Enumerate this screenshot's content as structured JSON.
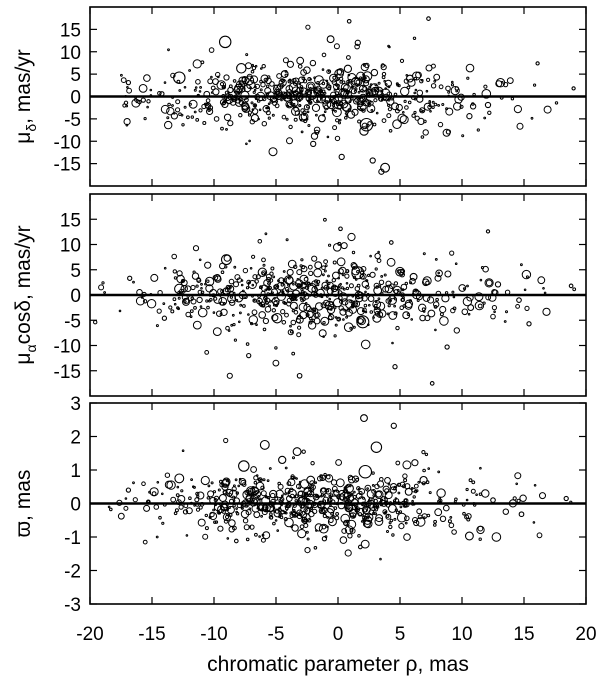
{
  "chart_data": [
    {
      "type": "scatter",
      "ylabel": "μδ, mas/yr",
      "ylabel_parts": {
        "main": "μ",
        "sub": "δ",
        "rest": ", mas/yr"
      },
      "ylim": [
        -20,
        20
      ],
      "yticks": [
        -15,
        -10,
        -5,
        0,
        5,
        10,
        15
      ],
      "ytick_labels": [
        "-15",
        "-10",
        "-5",
        "0",
        "5",
        "10",
        "15"
      ],
      "zero_line": true,
      "points": [
        {
          "x": -12.8,
          "y": 4.2,
          "s": 2.2
        },
        {
          "x": -9.1,
          "y": 12.2,
          "s": 2.2
        },
        {
          "x": -7.8,
          "y": 6.3,
          "s": 1.8
        },
        {
          "x": -0.6,
          "y": 12.8,
          "s": 1.3
        },
        {
          "x": 2.3,
          "y": -6.3,
          "s": 2.4
        },
        {
          "x": 2.1,
          "y": -7.7,
          "s": 1.6
        },
        {
          "x": 3.8,
          "y": -15.9,
          "s": 1.7
        },
        {
          "x": 3.5,
          "y": -16.8,
          "s": 1.0
        },
        {
          "x": 1.6,
          "y": 12.0,
          "s": 1.0
        },
        {
          "x": 0.9,
          "y": 16.8,
          "s": 0.7
        },
        {
          "x": 7.3,
          "y": 17.4,
          "s": 0.7
        },
        {
          "x": -6.7,
          "y": -4.8,
          "s": 1.4
        },
        {
          "x": -2.0,
          "y": -10.6,
          "s": 1.0
        },
        {
          "x": 0.3,
          "y": -13.5,
          "s": 1.0
        },
        {
          "x": 2.8,
          "y": -14.3,
          "s": 1.0
        },
        {
          "x": -3.6,
          "y": 2.1,
          "s": 1.6
        },
        {
          "x": -2.1,
          "y": 0.4,
          "s": 1.8
        },
        {
          "x": -0.9,
          "y": -1.8,
          "s": 1.5
        },
        {
          "x": 1.4,
          "y": 3.1,
          "s": 1.7
        },
        {
          "x": 4.6,
          "y": -2.2,
          "s": 1.3
        },
        {
          "x": 5.8,
          "y": 4.0,
          "s": 1.3
        },
        {
          "x": -5.2,
          "y": -0.6,
          "s": 1.2
        },
        {
          "x": 10.6,
          "y": -4.4,
          "s": 1.0
        },
        {
          "x": 12.1,
          "y": -1.9,
          "s": 1.0
        },
        {
          "x": -16.9,
          "y": 3.1,
          "s": 0.8
        },
        {
          "x": -15.7,
          "y": -0.8,
          "s": 0.8
        },
        {
          "x": 16.1,
          "y": 7.4,
          "s": 0.6
        },
        {
          "x": 19.0,
          "y": 1.8,
          "s": 0.6
        },
        {
          "x": -14.2,
          "y": 0.6,
          "s": 0.8
        },
        {
          "x": 8.9,
          "y": -7.9,
          "s": 0.8
        },
        {
          "x": -8.0,
          "y": 1.8,
          "s": 1.6
        },
        {
          "x": -4.3,
          "y": 5.0,
          "s": 1.3
        },
        {
          "x": 0.8,
          "y": 6.2,
          "s": 1.4
        },
        {
          "x": 3.3,
          "y": 1.2,
          "s": 1.5
        },
        {
          "x": -1.3,
          "y": -4.9,
          "s": 1.3
        },
        {
          "x": 6.6,
          "y": -0.6,
          "s": 1.2
        }
      ],
      "scatter_seed": 11,
      "scatter_count": 620,
      "scatter_spread": [
        6.5,
        3.2
      ]
    },
    {
      "type": "scatter",
      "ylabel": "μαcosδ, mas/yr",
      "ylabel_parts": {
        "main": "μ",
        "sub": "α",
        "rest": "cosδ, mas/yr"
      },
      "ylim": [
        -20,
        20
      ],
      "yticks": [
        -15,
        -10,
        -5,
        0,
        5,
        10,
        15
      ],
      "ytick_labels": [
        "-15",
        "-10",
        "-5",
        "0",
        "5",
        "10",
        "15"
      ],
      "zero_line": true,
      "points": [
        {
          "x": -12.8,
          "y": 1.2,
          "s": 1.8
        },
        {
          "x": -9.0,
          "y": 7.0,
          "s": 1.9
        },
        {
          "x": 1.6,
          "y": 4.4,
          "s": 2.3
        },
        {
          "x": 2.0,
          "y": -5.3,
          "s": 2.3
        },
        {
          "x": -4.9,
          "y": -4.6,
          "s": 1.8
        },
        {
          "x": -6.1,
          "y": 4.5,
          "s": 1.6
        },
        {
          "x": -3.1,
          "y": -16.0,
          "s": 0.9
        },
        {
          "x": 7.6,
          "y": -17.5,
          "s": 0.7
        },
        {
          "x": 4.3,
          "y": 10.4,
          "s": 0.7
        },
        {
          "x": 0.2,
          "y": 13.1,
          "s": 0.7
        },
        {
          "x": 12.1,
          "y": 12.6,
          "s": 0.6
        },
        {
          "x": 8.8,
          "y": -10.3,
          "s": 0.8
        },
        {
          "x": -7.2,
          "y": -12.0,
          "s": 0.8
        },
        {
          "x": 4.6,
          "y": -14.2,
          "s": 0.8
        },
        {
          "x": -2.1,
          "y": 1.4,
          "s": 1.7
        },
        {
          "x": -0.7,
          "y": -2.1,
          "s": 1.6
        },
        {
          "x": 3.2,
          "y": 0.9,
          "s": 1.5
        },
        {
          "x": 6.1,
          "y": 3.6,
          "s": 1.3
        },
        {
          "x": -3.9,
          "y": 2.9,
          "s": 1.4
        },
        {
          "x": 10.7,
          "y": -2.5,
          "s": 1.1
        },
        {
          "x": 14.6,
          "y": -1.0,
          "s": 0.9
        },
        {
          "x": 18.8,
          "y": 1.8,
          "s": 0.7
        },
        {
          "x": -16.8,
          "y": 3.3,
          "s": 0.8
        },
        {
          "x": -14.0,
          "y": -4.6,
          "s": 0.8
        },
        {
          "x": 12.9,
          "y": 2.1,
          "s": 1.0
        },
        {
          "x": -8.0,
          "y": -0.6,
          "s": 1.5
        },
        {
          "x": 5.5,
          "y": -4.0,
          "s": 1.3
        },
        {
          "x": -1.6,
          "y": 5.9,
          "s": 1.3
        },
        {
          "x": 0.4,
          "y": -0.4,
          "s": 1.6
        },
        {
          "x": 15.4,
          "y": -5.7,
          "s": 0.8
        }
      ],
      "scatter_seed": 29,
      "scatter_count": 620,
      "scatter_spread": [
        6.5,
        3.3
      ]
    },
    {
      "type": "scatter",
      "xlabel": "chromatic parameter ρ, mas",
      "ylabel": "ϖ, mas",
      "ylabel_parts": {
        "main": "ϖ",
        "sub": "",
        "rest": ", mas"
      },
      "xlim": [
        -20,
        20
      ],
      "xticks": [
        -20,
        -15,
        -10,
        -5,
        0,
        5,
        10,
        15,
        20
      ],
      "xtick_labels": [
        "-20",
        "-15",
        "-10",
        "-5",
        "0",
        "5",
        "10",
        "15",
        "20"
      ],
      "ylim": [
        -3,
        3
      ],
      "yticks": [
        -3,
        -2,
        -1,
        0,
        1,
        2,
        3
      ],
      "ytick_labels": [
        "-3",
        "-2",
        "-1",
        "0",
        "1",
        "2",
        "3"
      ],
      "zero_line": true,
      "points": [
        {
          "x": -12.8,
          "y": 0.75,
          "s": 1.7
        },
        {
          "x": -7.6,
          "y": 1.12,
          "s": 2.0
        },
        {
          "x": -5.9,
          "y": 1.75,
          "s": 1.7
        },
        {
          "x": -4.5,
          "y": 1.3,
          "s": 1.4
        },
        {
          "x": -3.3,
          "y": 1.55,
          "s": 1.5
        },
        {
          "x": 2.2,
          "y": 0.95,
          "s": 2.4
        },
        {
          "x": 3.1,
          "y": 1.68,
          "s": 2.0
        },
        {
          "x": 2.1,
          "y": 2.55,
          "s": 1.3
        },
        {
          "x": 4.5,
          "y": 2.32,
          "s": 1.0
        },
        {
          "x": 10.6,
          "y": -0.97,
          "s": 1.5
        },
        {
          "x": -8.2,
          "y": -1.12,
          "s": 0.7
        },
        {
          "x": -1.1,
          "y": -1.05,
          "s": 0.8
        },
        {
          "x": 1.8,
          "y": -1.3,
          "s": 0.7
        },
        {
          "x": -9.0,
          "y": 0.65,
          "s": 1.4
        },
        {
          "x": -3.7,
          "y": 0.3,
          "s": 1.6
        },
        {
          "x": -0.3,
          "y": 0.1,
          "s": 1.6
        },
        {
          "x": 0.9,
          "y": 0.45,
          "s": 1.6
        },
        {
          "x": 5.7,
          "y": 0.35,
          "s": 1.3
        },
        {
          "x": 6.9,
          "y": 0.7,
          "s": 1.4
        },
        {
          "x": 14.8,
          "y": -0.32,
          "s": 0.9
        },
        {
          "x": 18.4,
          "y": 0.15,
          "s": 0.8
        },
        {
          "x": -16.9,
          "y": 0.4,
          "s": 0.8
        },
        {
          "x": -15.3,
          "y": 0.05,
          "s": 0.7
        },
        {
          "x": -12.3,
          "y": -0.25,
          "s": 0.8
        },
        {
          "x": 12.5,
          "y": 0.1,
          "s": 0.9
        },
        {
          "x": -2.2,
          "y": 0.7,
          "s": 1.5
        },
        {
          "x": 1.2,
          "y": -0.28,
          "s": 1.4
        }
      ],
      "scatter_seed": 47,
      "scatter_count": 650,
      "scatter_spread": [
        6.3,
        0.42
      ]
    }
  ]
}
